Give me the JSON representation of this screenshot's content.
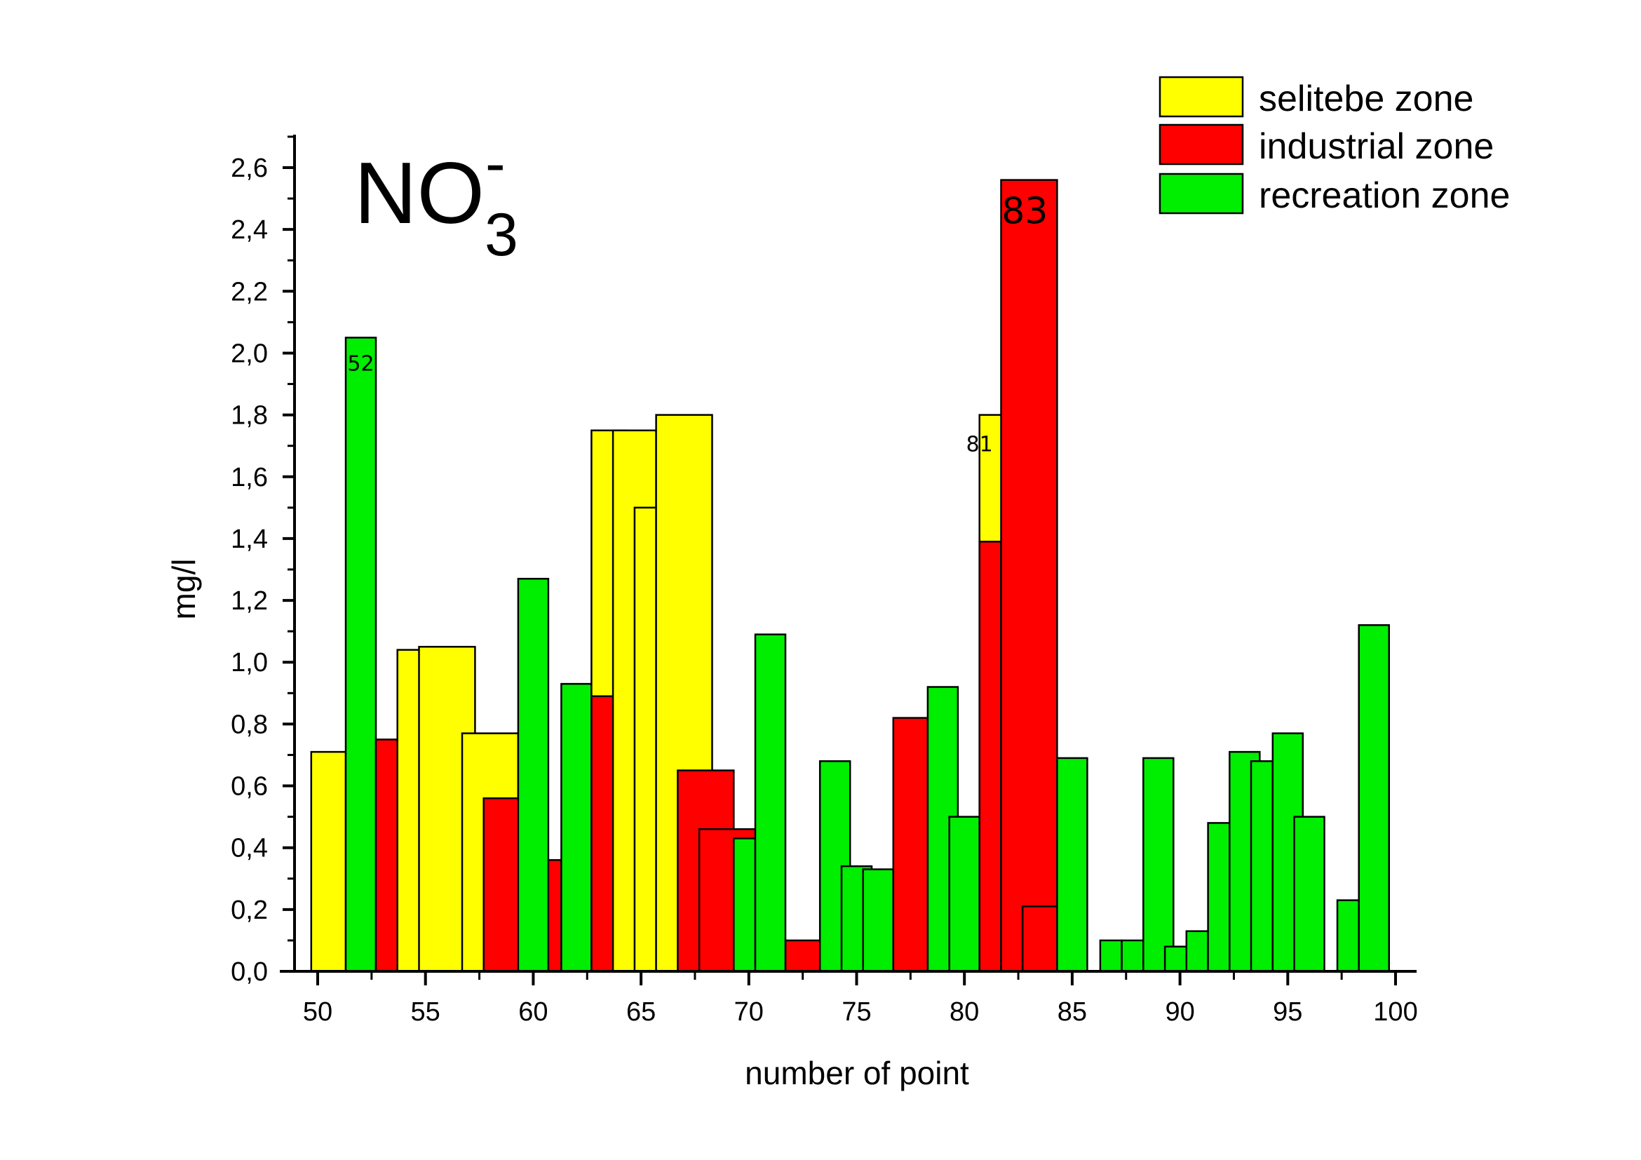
{
  "chart_data": {
    "type": "bar",
    "title": "NO",
    "title_subscript": "3",
    "title_superscript": "-",
    "xlabel": "number of point",
    "ylabel": "mg/l",
    "xlim": [
      49.5,
      101
    ],
    "ylim": [
      0,
      2.72
    ],
    "x_ticks": [
      50,
      55,
      60,
      65,
      70,
      75,
      80,
      85,
      90,
      95,
      100
    ],
    "x_tick_labels": [
      "50",
      "55",
      "60",
      "65",
      "70",
      "75",
      "80",
      "85",
      "90",
      "95",
      "100"
    ],
    "y_ticks": [
      0,
      0.2,
      0.4,
      0.6,
      0.8,
      1.0,
      1.2,
      1.4,
      1.6,
      1.8,
      2.0,
      2.2,
      2.4,
      2.6
    ],
    "y_tick_labels": [
      "0,0",
      "0,2",
      "0,4",
      "0,6",
      "0,8",
      "1,0",
      "1,2",
      "1,4",
      "1,6",
      "1,8",
      "2,0",
      "2,2",
      "2,4",
      "2,6"
    ],
    "legend_position": "top-right",
    "colors": {
      "selitebe": "#ffff00",
      "industrial": "#ff0000",
      "recreation": "#00ee00"
    },
    "series": [
      {
        "name": "selitebe zone",
        "key": "selitebe",
        "bars": [
          {
            "x0": 49.7,
            "x1": 51.3,
            "y": 0.71
          },
          {
            "x0": 53.7,
            "x1": 55.3,
            "y": 1.04
          },
          {
            "x0": 54.7,
            "x1": 57.3,
            "y": 1.05
          },
          {
            "x0": 56.7,
            "x1": 59.3,
            "y": 0.77
          },
          {
            "x0": 62.7,
            "x1": 64.3,
            "y": 1.75
          },
          {
            "x0": 63.7,
            "x1": 65.7,
            "y": 1.75
          },
          {
            "x0": 64.7,
            "x1": 65.7,
            "y": 1.5
          },
          {
            "x0": 65.7,
            "x1": 68.3,
            "y": 1.8
          },
          {
            "x0": 80.7,
            "x1": 82.3,
            "y": 1.8
          }
        ]
      },
      {
        "name": "industrial zone",
        "key": "industrial",
        "bars": [
          {
            "x0": 52.7,
            "x1": 54.3,
            "y": 0.75
          },
          {
            "x0": 57.7,
            "x1": 59.7,
            "y": 0.56
          },
          {
            "x0": 60.7,
            "x1": 61.3,
            "y": 0.36
          },
          {
            "x0": 62.7,
            "x1": 64.3,
            "y": 0.89
          },
          {
            "x0": 66.7,
            "x1": 69.3,
            "y": 0.65
          },
          {
            "x0": 67.7,
            "x1": 70.3,
            "y": 0.46
          },
          {
            "x0": 71.7,
            "x1": 73.3,
            "y": 0.1
          },
          {
            "x0": 76.7,
            "x1": 78.3,
            "y": 0.82
          },
          {
            "x0": 80.7,
            "x1": 81.7,
            "y": 1.39
          },
          {
            "x0": 81.7,
            "x1": 84.3,
            "y": 2.56
          },
          {
            "x0": 82.7,
            "x1": 84.3,
            "y": 0.21
          }
        ]
      },
      {
        "name": "recreation zone",
        "key": "recreation",
        "bars": [
          {
            "x0": 51.3,
            "x1": 52.7,
            "y": 2.05
          },
          {
            "x0": 59.3,
            "x1": 60.7,
            "y": 1.27
          },
          {
            "x0": 61.3,
            "x1": 62.7,
            "y": 0.93
          },
          {
            "x0": 69.3,
            "x1": 70.3,
            "y": 0.43
          },
          {
            "x0": 70.3,
            "x1": 71.7,
            "y": 1.09
          },
          {
            "x0": 73.3,
            "x1": 74.7,
            "y": 0.68
          },
          {
            "x0": 74.3,
            "x1": 75.7,
            "y": 0.34
          },
          {
            "x0": 75.3,
            "x1": 76.7,
            "y": 0.33
          },
          {
            "x0": 78.3,
            "x1": 79.7,
            "y": 0.92
          },
          {
            "x0": 79.3,
            "x1": 80.7,
            "y": 0.5
          },
          {
            "x0": 84.3,
            "x1": 85.7,
            "y": 0.69
          },
          {
            "x0": 86.3,
            "x1": 87.3,
            "y": 0.1
          },
          {
            "x0": 87.3,
            "x1": 88.3,
            "y": 0.1
          },
          {
            "x0": 88.3,
            "x1": 89.7,
            "y": 0.69
          },
          {
            "x0": 89.3,
            "x1": 90.3,
            "y": 0.08
          },
          {
            "x0": 90.3,
            "x1": 91.3,
            "y": 0.13
          },
          {
            "x0": 91.3,
            "x1": 92.3,
            "y": 0.48
          },
          {
            "x0": 92.3,
            "x1": 93.7,
            "y": 0.71
          },
          {
            "x0": 93.3,
            "x1": 94.3,
            "y": 0.68
          },
          {
            "x0": 94.3,
            "x1": 95.7,
            "y": 0.77
          },
          {
            "x0": 95.3,
            "x1": 96.7,
            "y": 0.5
          },
          {
            "x0": 97.3,
            "x1": 98.3,
            "y": 0.23
          },
          {
            "x0": 98.3,
            "x1": 99.7,
            "y": 1.12
          }
        ]
      }
    ],
    "annotations": [
      {
        "text": "52",
        "x": 52,
        "y": 1.97,
        "size": "small"
      },
      {
        "text": "81",
        "x": 80.7,
        "y": 1.71,
        "size": "small"
      },
      {
        "text": "83",
        "x": 82.8,
        "y": 2.46,
        "size": "large"
      }
    ]
  }
}
